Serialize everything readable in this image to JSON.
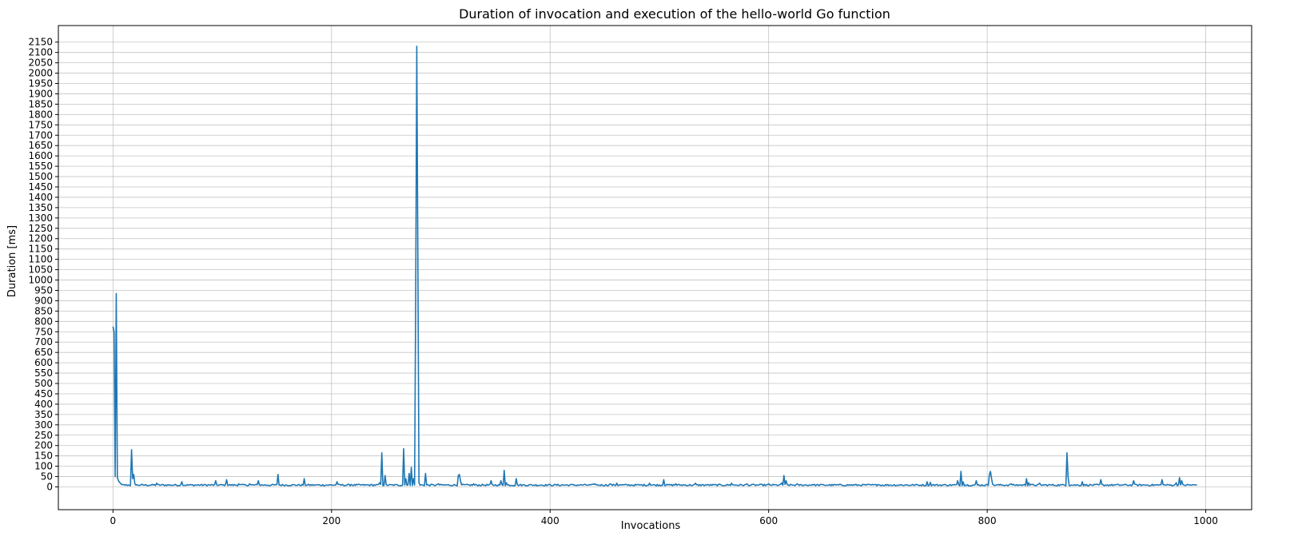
{
  "chart_data": {
    "type": "line",
    "title": "Duration of invocation and execution of the hello-world Go function",
    "xlabel": "Invocations",
    "ylabel": "Duration [ms]",
    "xlim": [
      -50,
      1042
    ],
    "ylim": [
      -110,
      2230
    ],
    "xticks": [
      0,
      200,
      400,
      600,
      800,
      1000
    ],
    "yticks": [
      0,
      50,
      100,
      150,
      200,
      250,
      300,
      350,
      400,
      450,
      500,
      550,
      600,
      650,
      700,
      750,
      800,
      850,
      900,
      950,
      1000,
      1050,
      1100,
      1150,
      1200,
      1250,
      1300,
      1350,
      1400,
      1450,
      1500,
      1550,
      1600,
      1650,
      1700,
      1750,
      1800,
      1850,
      1900,
      1950,
      2000,
      2050,
      2100,
      2150
    ],
    "grid": true,
    "color": "#1f77b4",
    "baseline_ms": 9,
    "n_points": 993,
    "spikes": [
      [
        0,
        775
      ],
      [
        1,
        750
      ],
      [
        2,
        50
      ],
      [
        3,
        935
      ],
      [
        4,
        45
      ],
      [
        5,
        30
      ],
      [
        6,
        22
      ],
      [
        7,
        18
      ],
      [
        17,
        180
      ],
      [
        18,
        40
      ],
      [
        19,
        60
      ],
      [
        20,
        15
      ],
      [
        40,
        18
      ],
      [
        63,
        25
      ],
      [
        94,
        30
      ],
      [
        104,
        35
      ],
      [
        115,
        15
      ],
      [
        125,
        15
      ],
      [
        133,
        30
      ],
      [
        151,
        60
      ],
      [
        175,
        40
      ],
      [
        205,
        25
      ],
      [
        218,
        12
      ],
      [
        244,
        20
      ],
      [
        246,
        165
      ],
      [
        249,
        55
      ],
      [
        266,
        185
      ],
      [
        268,
        40
      ],
      [
        271,
        65
      ],
      [
        273,
        95
      ],
      [
        275,
        40
      ],
      [
        277,
        900
      ],
      [
        278,
        2130
      ],
      [
        279,
        1100
      ],
      [
        280,
        20
      ],
      [
        286,
        65
      ],
      [
        298,
        15
      ],
      [
        316,
        55
      ],
      [
        317,
        60
      ],
      [
        318,
        30
      ],
      [
        330,
        15
      ],
      [
        346,
        30
      ],
      [
        355,
        30
      ],
      [
        358,
        80
      ],
      [
        360,
        20
      ],
      [
        369,
        40
      ],
      [
        441,
        15
      ],
      [
        455,
        15
      ],
      [
        461,
        18
      ],
      [
        491,
        18
      ],
      [
        504,
        35
      ],
      [
        515,
        15
      ],
      [
        533,
        18
      ],
      [
        566,
        18
      ],
      [
        580,
        15
      ],
      [
        600,
        15
      ],
      [
        612,
        20
      ],
      [
        614,
        55
      ],
      [
        616,
        30
      ],
      [
        626,
        15
      ],
      [
        640,
        12
      ],
      [
        700,
        12
      ],
      [
        745,
        25
      ],
      [
        748,
        22
      ],
      [
        773,
        30
      ],
      [
        776,
        75
      ],
      [
        778,
        25
      ],
      [
        790,
        30
      ],
      [
        802,
        60
      ],
      [
        803,
        75
      ],
      [
        804,
        40
      ],
      [
        822,
        15
      ],
      [
        836,
        40
      ],
      [
        838,
        20
      ],
      [
        848,
        18
      ],
      [
        873,
        165
      ],
      [
        874,
        50
      ],
      [
        887,
        25
      ],
      [
        904,
        35
      ],
      [
        934,
        30
      ],
      [
        960,
        35
      ],
      [
        973,
        20
      ],
      [
        976,
        45
      ],
      [
        978,
        30
      ]
    ]
  }
}
